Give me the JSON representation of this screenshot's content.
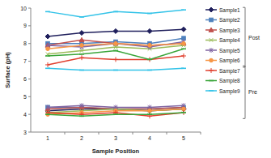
{
  "chart_data": {
    "type": "line",
    "x_label": "Sample Position",
    "y_label": "Surface (pH)",
    "categories": [
      1,
      2,
      3,
      4,
      5
    ],
    "ylim": [
      3,
      10
    ],
    "yticks": [
      3,
      4,
      5,
      6,
      7,
      8,
      9,
      10
    ],
    "grid": false,
    "legend": "right",
    "annotations": [
      "Post",
      "Pre"
    ],
    "series": [
      {
        "name": "Sample1",
        "color": "#1f1f5c",
        "marker": "diamond",
        "values": [
          8.4,
          8.6,
          8.7,
          8.7,
          8.8
        ],
        "pre": [
          4.2,
          4.3,
          4.3,
          4.2,
          4.3
        ]
      },
      {
        "name": "Sample2",
        "color": "#4f81bd",
        "marker": "square",
        "values": [
          8.0,
          8.0,
          8.1,
          8.0,
          8.3
        ],
        "pre": [
          4.4,
          4.4,
          4.3,
          4.3,
          4.4
        ]
      },
      {
        "name": "Sample3",
        "color": "#c0504d",
        "marker": "triangle",
        "values": [
          7.9,
          8.2,
          8.0,
          7.9,
          8.0
        ],
        "pre": [
          4.3,
          4.4,
          4.3,
          4.3,
          4.4
        ]
      },
      {
        "name": "Sample4",
        "color": "#9bbb59",
        "marker": "cross",
        "values": [
          7.4,
          7.6,
          7.8,
          7.7,
          7.9
        ],
        "pre": [
          4.1,
          4.2,
          4.3,
          4.2,
          4.3
        ]
      },
      {
        "name": "Sample5",
        "color": "#8064a2",
        "marker": "star",
        "values": [
          7.9,
          7.8,
          8.0,
          7.8,
          8.1
        ],
        "pre": [
          4.4,
          4.5,
          4.4,
          4.4,
          4.5
        ]
      },
      {
        "name": "Sample6",
        "color": "#f79646",
        "marker": "circle",
        "values": [
          7.7,
          7.9,
          8.0,
          7.9,
          8.0
        ],
        "pre": [
          4.0,
          4.1,
          4.2,
          4.2,
          4.3
        ]
      },
      {
        "name": "Sample7",
        "color": "#e0402f",
        "marker": "plus",
        "values": [
          6.8,
          7.2,
          7.1,
          7.1,
          7.3
        ],
        "pre": [
          4.1,
          4.0,
          4.1,
          3.9,
          4.1
        ]
      },
      {
        "name": "Sample8",
        "color": "#3aa53a",
        "marker": "dash",
        "values": [
          7.3,
          7.4,
          7.6,
          7.1,
          7.7
        ],
        "pre": [
          4.0,
          3.9,
          4.0,
          4.0,
          4.1
        ]
      },
      {
        "name": "Sample9",
        "color": "#33c3e8",
        "marker": "dash",
        "values": [
          9.8,
          9.5,
          9.8,
          9.7,
          9.9
        ],
        "pre": [
          6.6,
          6.5,
          6.5,
          6.5,
          6.6
        ]
      }
    ]
  }
}
